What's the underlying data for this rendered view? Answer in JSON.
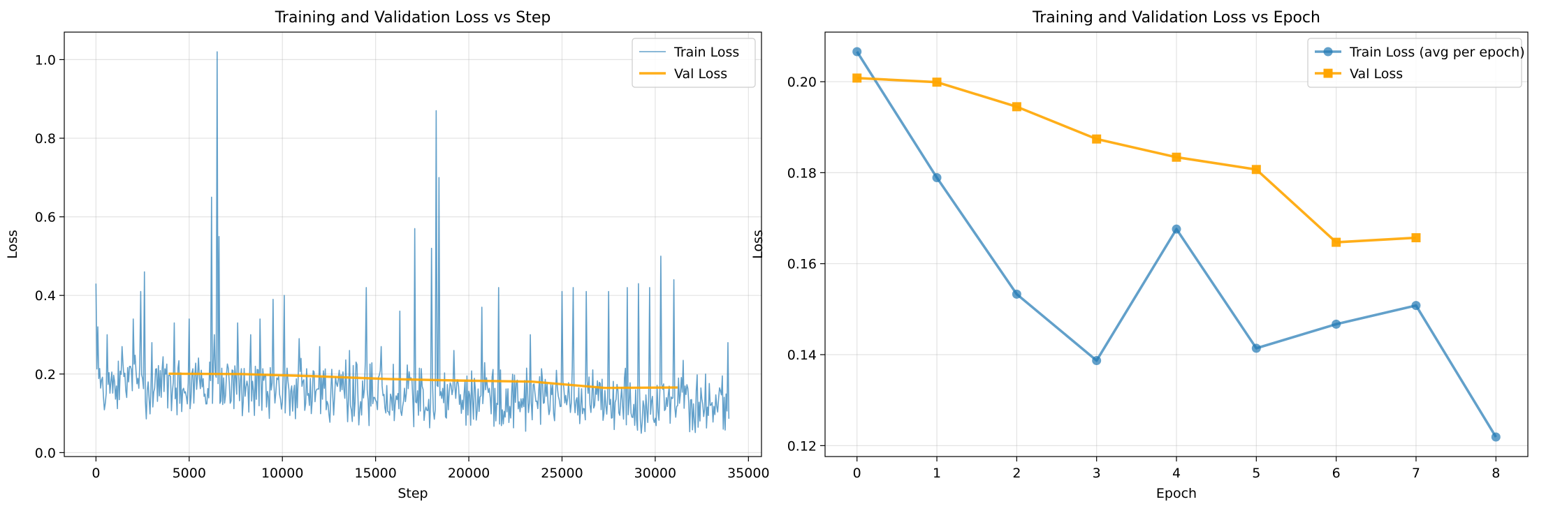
{
  "chart_data": [
    {
      "type": "line",
      "title": "Training and Validation Loss vs Step",
      "xlabel": "Step",
      "ylabel": "Loss",
      "xlim": [
        -1700,
        35700
      ],
      "ylim": [
        -0.01,
        1.07
      ],
      "xticks": [
        0,
        5000,
        10000,
        15000,
        20000,
        25000,
        30000,
        35000
      ],
      "yticks": [
        0.0,
        0.2,
        0.4,
        0.6,
        0.8,
        1.0
      ],
      "grid": true,
      "legend_position": "top-right",
      "series": [
        {
          "name": "Train Loss",
          "color": "#1f77b4",
          "opacity": 0.7,
          "style": "thin-line",
          "x_start": 0,
          "x_step": 50,
          "spikes": [
            [
              0,
              0.43
            ],
            [
              100,
              0.32
            ],
            [
              600,
              0.3
            ],
            [
              1400,
              0.27
            ],
            [
              2000,
              0.34
            ],
            [
              2400,
              0.41
            ],
            [
              2600,
              0.46
            ],
            [
              3000,
              0.28
            ],
            [
              4200,
              0.33
            ],
            [
              5000,
              0.34
            ],
            [
              6200,
              0.65
            ],
            [
              6350,
              0.3
            ],
            [
              6500,
              1.02
            ],
            [
              6600,
              0.55
            ],
            [
              7600,
              0.33
            ],
            [
              8300,
              0.3
            ],
            [
              8800,
              0.34
            ],
            [
              9500,
              0.39
            ],
            [
              10100,
              0.4
            ],
            [
              10900,
              0.29
            ],
            [
              12000,
              0.27
            ],
            [
              13600,
              0.26
            ],
            [
              14500,
              0.42
            ],
            [
              15300,
              0.27
            ],
            [
              16300,
              0.36
            ],
            [
              17100,
              0.57
            ],
            [
              18000,
              0.52
            ],
            [
              18250,
              0.87
            ],
            [
              18400,
              0.7
            ],
            [
              19200,
              0.26
            ],
            [
              20700,
              0.37
            ],
            [
              21600,
              0.42
            ],
            [
              23300,
              0.3
            ],
            [
              25000,
              0.41
            ],
            [
              25600,
              0.42
            ],
            [
              26300,
              0.41
            ],
            [
              27500,
              0.41
            ],
            [
              28500,
              0.42
            ],
            [
              29100,
              0.43
            ],
            [
              29700,
              0.42
            ],
            [
              30300,
              0.5
            ],
            [
              31000,
              0.44
            ],
            [
              32700,
              0.2
            ],
            [
              33900,
              0.28
            ]
          ]
        },
        {
          "name": "Val Loss",
          "color": "#ffa500",
          "style": "thick-line",
          "x": [
            3900,
            7800,
            11700,
            15600,
            19500,
            23400,
            27300,
            31200
          ],
          "y": [
            0.2008,
            0.1999,
            0.1945,
            0.1874,
            0.1834,
            0.1807,
            0.1647,
            0.1657
          ]
        }
      ]
    },
    {
      "type": "line",
      "title": "Training and Validation Loss vs Epoch",
      "xlabel": "Epoch",
      "ylabel": "Loss",
      "xlim": [
        -0.4,
        8.4
      ],
      "ylim": [
        0.1176,
        0.2109
      ],
      "xticks": [
        0,
        1,
        2,
        3,
        4,
        5,
        6,
        7,
        8
      ],
      "yticks": [
        0.12,
        0.14,
        0.16,
        0.18,
        0.2
      ],
      "grid": true,
      "legend_position": "top-right",
      "series": [
        {
          "name": "Train Loss (avg per epoch)",
          "color": "#1f77b4",
          "marker": "circle",
          "x": [
            0,
            1,
            2,
            3,
            4,
            5,
            6,
            7,
            8
          ],
          "y": [
            0.2066,
            0.1789,
            0.1533,
            0.1387,
            0.1676,
            0.1414,
            0.1467,
            0.1508,
            0.1219
          ]
        },
        {
          "name": "Val Loss",
          "color": "#ffa500",
          "marker": "square",
          "x": [
            0,
            1,
            2,
            3,
            4,
            5,
            6,
            7
          ],
          "y": [
            0.2008,
            0.1999,
            0.1945,
            0.1874,
            0.1834,
            0.1807,
            0.1647,
            0.1657
          ]
        }
      ]
    }
  ]
}
